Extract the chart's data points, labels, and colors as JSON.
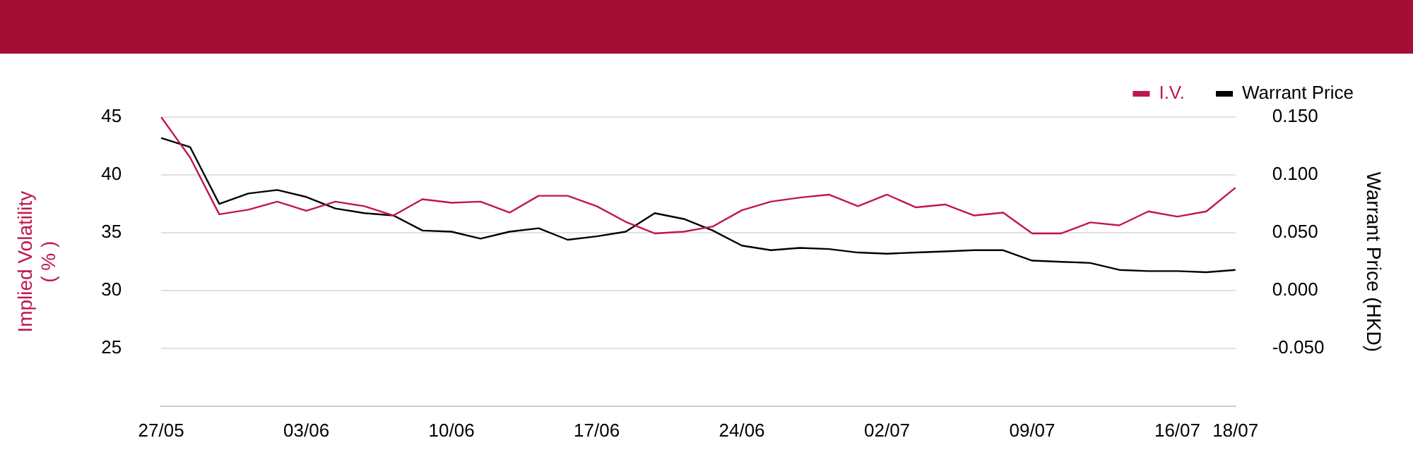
{
  "chart_data": {
    "type": "line",
    "ylabel": "Implied Volatility\n( % )",
    "y2label": "Warrant Price (HKD)",
    "categories": [
      "27/05",
      null,
      null,
      null,
      null,
      "03/06",
      null,
      null,
      null,
      null,
      "10/06",
      null,
      null,
      null,
      null,
      "17/06",
      null,
      null,
      null,
      null,
      "24/06",
      null,
      null,
      null,
      null,
      "02/07",
      null,
      null,
      null,
      null,
      "09/07",
      null,
      null,
      null,
      null,
      "16/07",
      null,
      "18/07"
    ],
    "series": [
      {
        "name": "I.V.",
        "color": "#c0174a",
        "values": [
          45,
          41.5,
          36.6,
          37.0,
          37.7,
          36.9,
          37.7,
          37.3,
          36.5,
          37.9,
          37.6,
          37.7,
          36.75,
          38.2,
          38.2,
          37.3,
          35.95,
          34.95,
          35.1,
          35.55,
          36.95,
          37.7,
          38.05,
          38.3,
          37.3,
          38.3,
          37.2,
          37.45,
          36.5,
          36.75,
          34.95,
          34.95,
          35.9,
          35.65,
          36.85,
          36.4,
          36.85,
          38.9
        ]
      },
      {
        "name": "Warrant Price",
        "color": "#000000",
        "axis": "y2",
        "values": [
          0.132,
          0.124,
          0.075,
          0.084,
          0.087,
          0.081,
          0.071,
          0.067,
          0.065,
          0.052,
          0.051,
          0.045,
          0.051,
          0.054,
          0.044,
          0.047,
          0.051,
          0.067,
          0.062,
          0.052,
          0.039,
          0.035,
          0.037,
          0.036,
          0.033,
          0.032,
          0.033,
          0.034,
          0.035,
          0.035,
          0.026,
          0.025,
          0.024,
          0.018,
          0.017,
          0.017,
          0.016,
          0.018
        ]
      }
    ],
    "ylim": [
      20,
      45
    ],
    "yticks": [
      25,
      30,
      35,
      40,
      45
    ],
    "y2lim": [
      -0.1,
      0.15
    ],
    "y2ticks": [
      {
        "value": -0.05,
        "label": "-0.050"
      },
      {
        "value": 0,
        "label": "0.000"
      },
      {
        "value": 0.05,
        "label": "0.050"
      },
      {
        "value": 0.1,
        "label": "0.100"
      },
      {
        "value": 0.15,
        "label": "0.150"
      }
    ],
    "grid": "y",
    "legend": "top right",
    "marker": "none",
    "line_style": "solid"
  }
}
